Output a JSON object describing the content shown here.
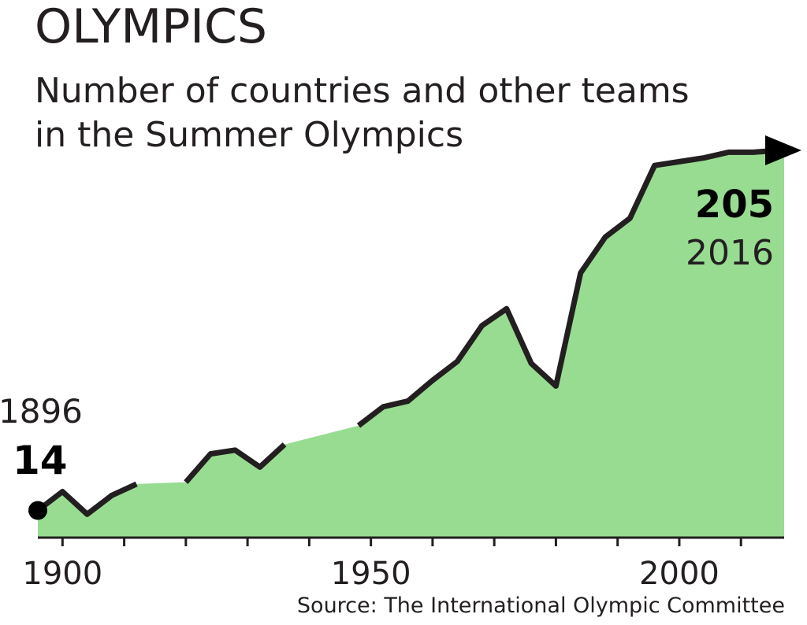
{
  "title": "OLYMPICS",
  "subtitle_line1": "Number of countries and other teams",
  "subtitle_line2": "in the Summer Olympics",
  "source": "Source: The International Olympic Committee",
  "chart_data": {
    "type": "area",
    "x": [
      1896,
      1900,
      1904,
      1908,
      1912,
      1920,
      1924,
      1928,
      1932,
      1936,
      1948,
      1952,
      1956,
      1960,
      1964,
      1968,
      1972,
      1976,
      1980,
      1984,
      1988,
      1992,
      1996,
      2000,
      2004,
      2008,
      2012,
      2016
    ],
    "values": [
      14,
      24,
      12,
      22,
      28,
      29,
      44,
      46,
      37,
      49,
      59,
      69,
      72,
      83,
      93,
      112,
      121,
      92,
      80,
      140,
      159,
      169,
      197,
      199,
      201,
      204,
      204,
      205
    ],
    "xlim": [
      1896,
      2017
    ],
    "ylim": [
      0,
      205
    ],
    "xticks": [
      1900,
      1950,
      2000
    ],
    "minor_xticks": [
      1900,
      1910,
      1920,
      1930,
      1940,
      1950,
      1960,
      1970,
      1980,
      1990,
      2000,
      2010
    ],
    "fill_color": "#98dc92",
    "line_color": "#231f20",
    "annotations": [
      {
        "year_label": "1896",
        "value_label": "14"
      },
      {
        "year_label": "2016",
        "value_label": "205"
      }
    ]
  }
}
